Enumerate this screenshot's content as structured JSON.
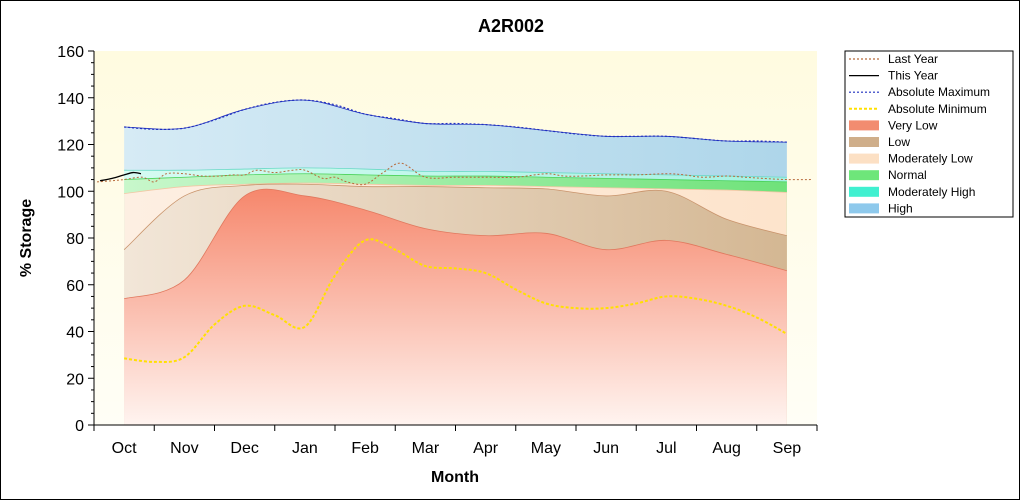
{
  "chart_data": {
    "type": "area",
    "title": "A2R002",
    "xlabel": "Month",
    "ylabel": "% Storage",
    "ylim": [
      0,
      160
    ],
    "ytick_step": 20,
    "yticks": [
      "0",
      "20",
      "40",
      "60",
      "80",
      "100",
      "120",
      "140",
      "160"
    ],
    "xlim": [
      -0.5,
      11.5
    ],
    "categories": [
      "Oct",
      "Nov",
      "Dec",
      "Jan",
      "Feb",
      "Mar",
      "Apr",
      "May",
      "Jun",
      "Jul",
      "Aug",
      "Sep"
    ],
    "band_x": [
      0,
      1,
      2,
      3,
      4,
      5,
      6,
      7,
      8,
      9,
      10,
      11
    ],
    "bands": {
      "high_top": [
        127.5,
        127,
        135,
        139,
        133,
        129,
        128.5,
        126,
        123.5,
        123.5,
        121.5,
        121
      ],
      "moderately_high_top": [
        109,
        109,
        109.5,
        110,
        109.5,
        108.5,
        108.5,
        108,
        107.5,
        107,
        106.5,
        106
      ],
      "normal_top": [
        105,
        106,
        107,
        107.5,
        107,
        106.5,
        106.5,
        106,
        105.5,
        105,
        104.5,
        104
      ],
      "moderately_low_top": [
        99,
        102,
        103,
        103.5,
        103,
        102.5,
        102.5,
        102,
        101.5,
        101,
        100.5,
        99.5
      ],
      "low_top": [
        75,
        98,
        102.5,
        103,
        102,
        102,
        101.5,
        101,
        98,
        100,
        88,
        81
      ],
      "very_low_top": [
        54,
        62,
        98,
        98,
        92,
        84,
        81,
        82,
        75,
        79,
        73,
        66
      ]
    },
    "series": [
      {
        "name": "Last Year",
        "color": "#b86a3c",
        "x": [
          -0.45,
          -0.2,
          0,
          0.3,
          0.5,
          0.7,
          1,
          1.3,
          1.6,
          1.8,
          2,
          2.2,
          2.5,
          2.8,
          3,
          3.3,
          3.5,
          3.7,
          4,
          4.3,
          4.6,
          5,
          5.5,
          6,
          6.5,
          7,
          7.3,
          7.6,
          8,
          8.5,
          9,
          9.3,
          9.6,
          10,
          10.3,
          10.6,
          11,
          11.4
        ],
        "values": [
          104,
          104.5,
          105,
          106,
          104,
          107.5,
          107.5,
          106.5,
          106.5,
          107,
          107,
          109,
          108,
          109,
          109,
          105.5,
          106,
          104,
          103,
          108,
          112,
          106,
          106,
          106,
          106,
          107.5,
          106.5,
          106.5,
          107,
          107,
          107.5,
          107,
          106,
          106.5,
          106,
          105.5,
          105,
          105
        ]
      },
      {
        "name": "This Year",
        "color": "#000000",
        "x": [
          -0.4,
          -0.2,
          0,
          0.15,
          0.28
        ],
        "values": [
          104.5,
          105.5,
          107,
          108,
          107.5
        ]
      },
      {
        "name": "Absolute Maximum",
        "color": "#1f2fbf",
        "x": [
          0,
          0.5,
          1,
          1.5,
          2,
          2.5,
          3,
          3.5,
          4,
          4.5,
          5,
          5.5,
          6,
          6.5,
          7,
          7.5,
          8,
          8.5,
          9,
          9.5,
          10,
          10.5,
          11
        ],
        "values": [
          127.5,
          126.5,
          127,
          130.5,
          135,
          138,
          139,
          137,
          133,
          131,
          129,
          129,
          128.5,
          127.5,
          126,
          124.5,
          123.5,
          123.5,
          123.5,
          122.5,
          121.5,
          121.5,
          121
        ]
      },
      {
        "name": "Absolute Minimum",
        "color": "#ffe000",
        "x": [
          0,
          0.5,
          1,
          1.5,
          2,
          2.5,
          3,
          3.5,
          4,
          4.5,
          5,
          5.5,
          6,
          6.5,
          7,
          7.5,
          8,
          8.5,
          9,
          9.5,
          10,
          10.5,
          11
        ],
        "values": [
          28.5,
          27,
          29,
          43,
          51,
          47,
          42,
          64,
          79,
          75,
          68,
          67,
          65,
          58,
          52,
          50,
          50,
          52,
          55,
          54,
          51,
          46,
          39
        ]
      }
    ],
    "legend": [
      {
        "label": "Last Year",
        "kind": "line",
        "color": "#b86a3c",
        "dash": "2,2"
      },
      {
        "label": "This Year",
        "kind": "line",
        "color": "#000000",
        "dash": ""
      },
      {
        "label": "Absolute Maximum",
        "kind": "line",
        "color": "#1f2fbf",
        "dash": "2,2"
      },
      {
        "label": "Absolute Minimum",
        "kind": "line",
        "color": "#ffe000",
        "dash": "3,2"
      },
      {
        "label": "Very Low",
        "kind": "swatch",
        "color": "#f28c70"
      },
      {
        "label": "Low",
        "kind": "swatch",
        "color": "#cfae8a"
      },
      {
        "label": "Moderately Low",
        "kind": "swatch",
        "color": "#fce0c4"
      },
      {
        "label": "Normal",
        "kind": "swatch",
        "color": "#6ee67a"
      },
      {
        "label": "Moderately High",
        "kind": "swatch",
        "color": "#40f0d0"
      },
      {
        "label": "High",
        "kind": "swatch",
        "color": "#8ec9ec"
      }
    ],
    "legend_position": "top-right",
    "colors": {
      "plot_background": "#fffbe6",
      "very_low": "#f7a088",
      "low": "#dcc3a5",
      "moderately_low": "#fde7d2",
      "normal": "#9ef0a4",
      "moderately_high": "#b9f5e8",
      "high": "#bcdff0"
    }
  }
}
